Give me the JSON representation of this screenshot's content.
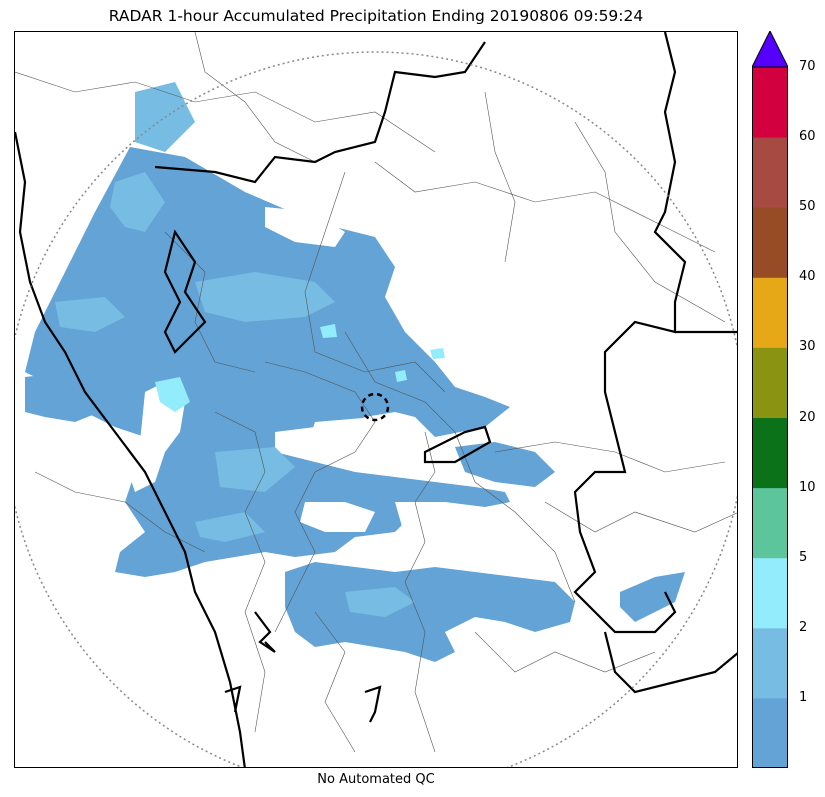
{
  "title": "RADAR 1-hour Accumulated Precipitation Ending 20190806 09:59:24",
  "footer_note": "No Automated QC",
  "colorbar": {
    "ticks": [
      "1",
      "2",
      "5",
      "10",
      "20",
      "30",
      "40",
      "50",
      "60",
      "70"
    ],
    "bins": [
      {
        "color": "#63a3d5"
      },
      {
        "color": "#77bce3"
      },
      {
        "color": "#93ecfb"
      },
      {
        "color": "#5cc59b"
      },
      {
        "color": "#0c7219"
      },
      {
        "color": "#8a9412"
      },
      {
        "color": "#e6a817"
      },
      {
        "color": "#984c25"
      },
      {
        "color": "#a64a42"
      },
      {
        "color": "#d3003f"
      }
    ],
    "extend_color": "#5500ff"
  },
  "colors": {
    "precip_light": "#63a3d5",
    "precip_medium": "#77bce3",
    "precip_cyan": "#93ecfb",
    "state_border": "#000000",
    "district_border": "#555555",
    "range_ring": "#888888"
  }
}
